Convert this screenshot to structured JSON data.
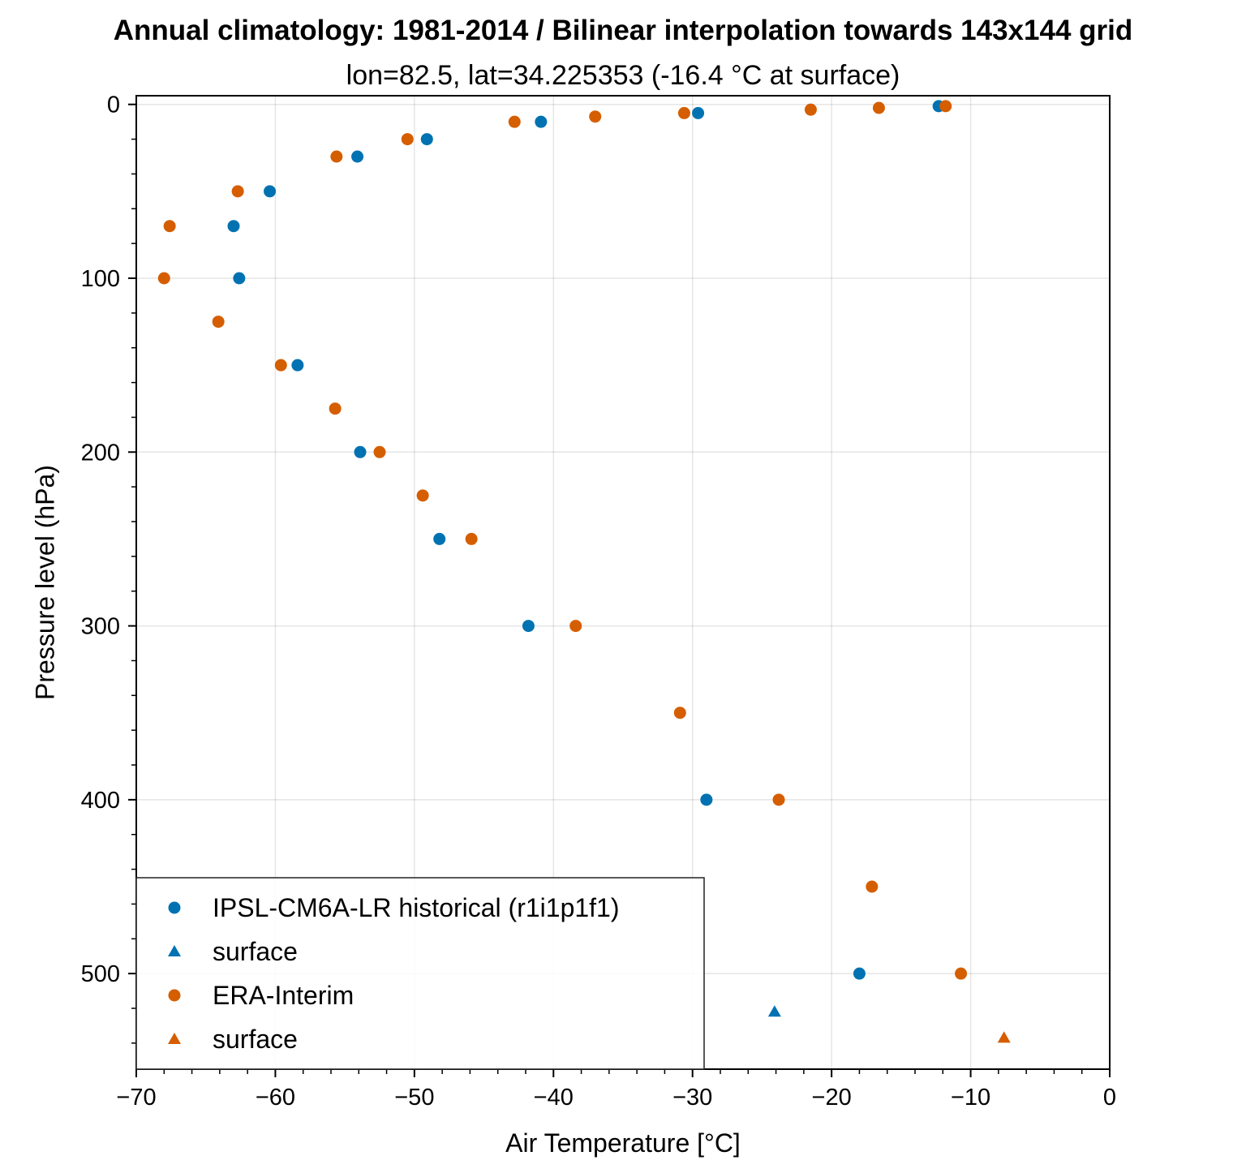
{
  "chart_data": {
    "type": "scatter",
    "title": "Annual climatology: 1981-2014 / Bilinear interpolation towards 143x144 grid",
    "subtitle": "lon=82.5, lat=34.225353 (-16.4 °C at surface)",
    "xlabel": "Air Temperature [°C]",
    "ylabel": "Pressure level (hPa)",
    "xlim": [
      -70,
      0
    ],
    "ylim": [
      555,
      -5
    ],
    "y_inverted": true,
    "grid": true,
    "legend_position": "lower-left",
    "x_ticks": [
      -70,
      -60,
      -50,
      -40,
      -30,
      -20,
      -10,
      0
    ],
    "x_tick_labels": [
      "−70",
      "−60",
      "−50",
      "−40",
      "−30",
      "−20",
      "−10",
      "0"
    ],
    "y_ticks": [
      0,
      100,
      200,
      300,
      400,
      500
    ],
    "y_tick_labels": [
      "0",
      "100",
      "200",
      "300",
      "400",
      "500"
    ],
    "series": [
      {
        "name": "IPSL-CM6A-LR historical (r1i1p1f1)",
        "marker": "circle",
        "color": "#0072b2",
        "points": [
          {
            "x": -12.3,
            "y": 1
          },
          {
            "x": -29.6,
            "y": 5
          },
          {
            "x": -40.9,
            "y": 10
          },
          {
            "x": -49.1,
            "y": 20
          },
          {
            "x": -54.1,
            "y": 30
          },
          {
            "x": -60.4,
            "y": 50
          },
          {
            "x": -63.0,
            "y": 70
          },
          {
            "x": -62.6,
            "y": 100
          },
          {
            "x": -58.4,
            "y": 150
          },
          {
            "x": -53.9,
            "y": 200
          },
          {
            "x": -48.2,
            "y": 250
          },
          {
            "x": -41.8,
            "y": 300
          },
          {
            "x": -29.0,
            "y": 400
          },
          {
            "x": -18.0,
            "y": 500
          }
        ]
      },
      {
        "name": "surface",
        "marker": "triangle",
        "color": "#0072b2",
        "points": [
          {
            "x": -24.1,
            "y": 522
          }
        ]
      },
      {
        "name": "ERA-Interim",
        "marker": "circle",
        "color": "#d55e00",
        "points": [
          {
            "x": -11.8,
            "y": 1
          },
          {
            "x": -16.6,
            "y": 2
          },
          {
            "x": -21.5,
            "y": 3
          },
          {
            "x": -30.6,
            "y": 5
          },
          {
            "x": -37.0,
            "y": 7
          },
          {
            "x": -42.8,
            "y": 10
          },
          {
            "x": -50.5,
            "y": 20
          },
          {
            "x": -55.6,
            "y": 30
          },
          {
            "x": -62.7,
            "y": 50
          },
          {
            "x": -67.6,
            "y": 70
          },
          {
            "x": -68.0,
            "y": 100
          },
          {
            "x": -64.1,
            "y": 125
          },
          {
            "x": -59.6,
            "y": 150
          },
          {
            "x": -55.7,
            "y": 175
          },
          {
            "x": -52.5,
            "y": 200
          },
          {
            "x": -49.4,
            "y": 225
          },
          {
            "x": -45.9,
            "y": 250
          },
          {
            "x": -38.4,
            "y": 300
          },
          {
            "x": -30.9,
            "y": 350
          },
          {
            "x": -23.8,
            "y": 400
          },
          {
            "x": -17.1,
            "y": 450
          },
          {
            "x": -10.7,
            "y": 500
          }
        ]
      },
      {
        "name": "surface",
        "marker": "triangle",
        "color": "#d55e00",
        "points": [
          {
            "x": -7.6,
            "y": 537
          }
        ]
      }
    ]
  }
}
